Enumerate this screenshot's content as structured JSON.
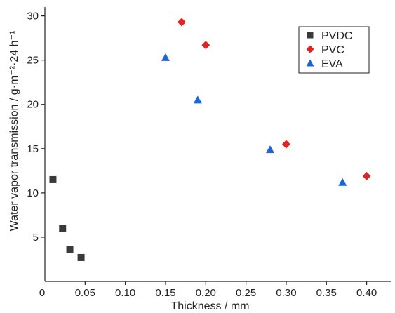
{
  "chart_data": {
    "type": "scatter",
    "title": "",
    "xlabel": "Thickness / mm",
    "ylabel": "Water vapor transmission / g·m⁻²·24 h⁻¹",
    "xlim": [
      0,
      0.43
    ],
    "ylim": [
      0,
      31
    ],
    "x_ticks": [
      0,
      0.05,
      0.1,
      0.15,
      0.2,
      0.25,
      0.3,
      0.35,
      0.4
    ],
    "x_tick_labels": [
      "0",
      "0.05",
      "0.10",
      "0.15",
      "0.20",
      "0.25",
      "0.30",
      "0.35",
      "0.40"
    ],
    "y_ticks": [
      5,
      10,
      15,
      20,
      25,
      30
    ],
    "y_tick_labels": [
      "5",
      "10",
      "15",
      "20",
      "25",
      "30"
    ],
    "grid": false,
    "legend_position": "top-right",
    "series": [
      {
        "name": "PVDC",
        "marker": "square",
        "color": "#3a3a3a",
        "points": [
          {
            "x": 0.01,
            "y": 11.5
          },
          {
            "x": 0.022,
            "y": 6.0
          },
          {
            "x": 0.031,
            "y": 3.6
          },
          {
            "x": 0.045,
            "y": 2.7
          }
        ]
      },
      {
        "name": "PVC",
        "marker": "diamond",
        "color": "#e02424",
        "points": [
          {
            "x": 0.17,
            "y": 29.3
          },
          {
            "x": 0.2,
            "y": 26.7
          },
          {
            "x": 0.3,
            "y": 15.5
          },
          {
            "x": 0.4,
            "y": 11.9
          }
        ]
      },
      {
        "name": "EVA",
        "marker": "triangle",
        "color": "#1c64d8",
        "points": [
          {
            "x": 0.15,
            "y": 25.3
          },
          {
            "x": 0.19,
            "y": 20.5
          },
          {
            "x": 0.28,
            "y": 14.9
          },
          {
            "x": 0.37,
            "y": 11.2
          }
        ]
      }
    ]
  }
}
